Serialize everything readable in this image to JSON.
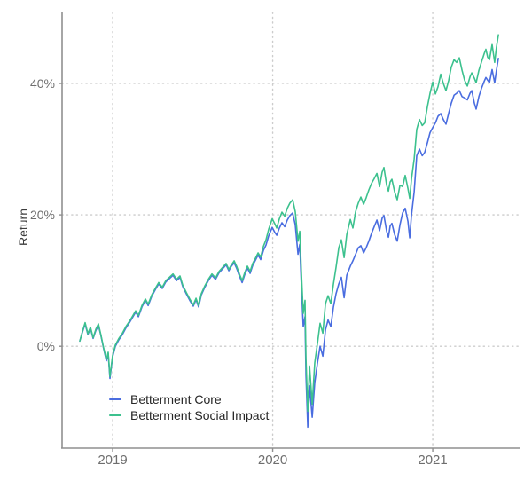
{
  "chart_data": {
    "type": "line",
    "title": "",
    "ylabel": "Return",
    "xlabel": "",
    "grid": "dotted",
    "legend_position": "inside-bottom-left",
    "xlim": [
      2018.684,
      2021.537
    ],
    "ylim": [
      -15.5,
      50.8
    ],
    "x_ticks": [
      {
        "value": 2019,
        "label": "2019"
      },
      {
        "value": 2020,
        "label": "2020"
      },
      {
        "value": 2021,
        "label": "2021"
      }
    ],
    "y_ticks": [
      {
        "value": 0,
        "label": "0%"
      },
      {
        "value": 20,
        "label": "20%"
      },
      {
        "value": 40,
        "label": "40%"
      }
    ],
    "colors": {
      "core_line": "#4a6de0",
      "social_line": "#3cc18e",
      "axis": "#8f8f8f",
      "grid": "#cccccc",
      "tick_text": "#6e6e6e",
      "legend_text": "#262626"
    },
    "x": [
      2018.795,
      2018.812,
      2018.828,
      2018.845,
      2018.861,
      2018.878,
      2018.895,
      2018.911,
      2018.928,
      2018.945,
      2018.961,
      2018.972,
      2018.983,
      2019.0,
      2019.017,
      2019.039,
      2019.061,
      2019.083,
      2019.105,
      2019.127,
      2019.144,
      2019.161,
      2019.183,
      2019.205,
      2019.222,
      2019.244,
      2019.266,
      2019.288,
      2019.31,
      2019.332,
      2019.355,
      2019.377,
      2019.399,
      2019.421,
      2019.438,
      2019.46,
      2019.482,
      2019.504,
      2019.521,
      2019.537,
      2019.554,
      2019.576,
      2019.598,
      2019.62,
      2019.643,
      2019.665,
      2019.687,
      2019.709,
      2019.726,
      2019.742,
      2019.759,
      2019.776,
      2019.792,
      2019.809,
      2019.825,
      2019.842,
      2019.859,
      2019.875,
      2019.892,
      2019.909,
      2019.925,
      2019.942,
      2019.958,
      2019.975,
      2019.997,
      2020.014,
      2020.025,
      2020.042,
      2020.058,
      2020.075,
      2020.091,
      2020.108,
      2020.125,
      2020.141,
      2020.158,
      2020.169,
      2020.18,
      2020.191,
      2020.202,
      2020.208,
      2020.219,
      2020.23,
      2020.247,
      2020.263,
      2020.28,
      2020.296,
      2020.313,
      2020.33,
      2020.346,
      2020.363,
      2020.38,
      2020.396,
      2020.413,
      2020.429,
      2020.446,
      2020.463,
      2020.485,
      2020.501,
      2020.518,
      2020.535,
      2020.551,
      2020.568,
      2020.584,
      2020.601,
      2020.618,
      2020.634,
      2020.651,
      2020.668,
      2020.684,
      2020.695,
      2020.712,
      2020.723,
      2020.734,
      2020.745,
      2020.762,
      2020.778,
      2020.795,
      2020.812,
      2020.828,
      2020.845,
      2020.856,
      2020.867,
      2020.884,
      2020.9,
      2020.917,
      2020.934,
      2020.95,
      2020.967,
      2020.983,
      2021.0,
      2021.017,
      2021.033,
      2021.05,
      2021.066,
      2021.083,
      2021.1,
      2021.116,
      2021.133,
      2021.149,
      2021.166,
      2021.183,
      2021.199,
      2021.216,
      2021.233,
      2021.244,
      2021.26,
      2021.271,
      2021.288,
      2021.304,
      2021.321,
      2021.332,
      2021.343,
      2021.354,
      2021.371,
      2021.387,
      2021.398,
      2021.41
    ],
    "series": [
      {
        "name": "Betterment Core",
        "color": "#4a6de0",
        "values": [
          0.8,
          2.2,
          3.4,
          1.8,
          2.7,
          1.2,
          2.4,
          3.2,
          1.5,
          -0.5,
          -2.2,
          -1.1,
          -4.9,
          -1.6,
          0.0,
          1.0,
          1.8,
          2.8,
          3.6,
          4.5,
          5.2,
          4.5,
          6.0,
          7.0,
          6.2,
          7.6,
          8.6,
          9.5,
          8.8,
          9.8,
          10.3,
          10.8,
          10.0,
          10.5,
          9.1,
          8.0,
          7.0,
          6.1,
          7.1,
          6.0,
          7.8,
          9.0,
          10.0,
          10.8,
          10.2,
          11.2,
          11.8,
          12.4,
          11.5,
          12.2,
          12.7,
          11.8,
          10.7,
          9.7,
          10.9,
          11.9,
          11.1,
          12.3,
          13.1,
          13.9,
          13.2,
          14.6,
          15.4,
          16.8,
          18.1,
          17.3,
          16.9,
          18.0,
          18.8,
          18.2,
          19.2,
          19.9,
          20.3,
          18.5,
          14.0,
          15.5,
          9.0,
          3.0,
          4.5,
          -4.5,
          -12.3,
          -6.0,
          -10.8,
          -5.5,
          -2.5,
          0.0,
          -1.5,
          2.5,
          4.0,
          3.0,
          6.0,
          8.0,
          9.5,
          10.5,
          7.4,
          10.8,
          12.2,
          13.0,
          14.0,
          15.0,
          15.3,
          14.2,
          15.0,
          16.0,
          17.2,
          18.2,
          19.2,
          17.6,
          19.5,
          19.9,
          17.5,
          16.6,
          18.3,
          18.7,
          17.0,
          16.0,
          18.5,
          20.3,
          21.0,
          19.0,
          16.5,
          20.0,
          23.5,
          29.0,
          30.0,
          29.0,
          29.5,
          31.0,
          32.5,
          33.3,
          34.0,
          35.0,
          35.4,
          34.5,
          33.8,
          35.5,
          37.0,
          38.2,
          38.5,
          38.9,
          38.0,
          37.8,
          37.5,
          38.5,
          38.9,
          37.0,
          36.1,
          38.0,
          39.2,
          40.3,
          40.9,
          40.5,
          40.1,
          42.1,
          40.1,
          42.0,
          43.8
        ]
      },
      {
        "name": "Betterment Social Impact",
        "color": "#3cc18e",
        "values": [
          0.8,
          2.3,
          3.6,
          1.9,
          2.9,
          1.3,
          2.6,
          3.4,
          1.6,
          -0.4,
          -2.0,
          -0.9,
          -4.6,
          -1.4,
          0.2,
          1.2,
          2.0,
          3.0,
          3.8,
          4.7,
          5.4,
          4.7,
          6.2,
          7.2,
          6.4,
          7.8,
          8.8,
          9.7,
          9.0,
          10.0,
          10.5,
          11.0,
          10.2,
          10.7,
          9.3,
          8.2,
          7.2,
          6.3,
          7.3,
          6.2,
          8.0,
          9.2,
          10.2,
          11.0,
          10.4,
          11.4,
          12.0,
          12.6,
          11.7,
          12.4,
          13.0,
          12.1,
          11.0,
          10.0,
          11.2,
          12.2,
          11.4,
          12.6,
          13.4,
          14.2,
          13.6,
          15.2,
          16.2,
          17.8,
          19.4,
          18.6,
          18.0,
          19.4,
          20.4,
          19.8,
          21.0,
          21.8,
          22.3,
          20.5,
          16.0,
          17.5,
          11.0,
          5.0,
          7.0,
          -2.0,
          -9.9,
          -3.0,
          -8.8,
          -2.5,
          0.5,
          3.5,
          2.0,
          6.5,
          7.7,
          6.5,
          9.5,
          12.0,
          15.0,
          16.2,
          13.5,
          17.0,
          19.3,
          18.0,
          20.5,
          21.8,
          22.7,
          21.6,
          22.6,
          23.8,
          24.8,
          25.5,
          26.3,
          24.3,
          26.5,
          27.2,
          24.5,
          23.6,
          25.0,
          25.4,
          23.5,
          22.3,
          24.5,
          24.3,
          26.0,
          24.0,
          22.5,
          25.5,
          28.5,
          33.0,
          34.5,
          33.6,
          34.0,
          36.5,
          38.5,
          40.2,
          38.4,
          39.5,
          41.4,
          40.0,
          38.9,
          40.5,
          42.5,
          43.6,
          43.2,
          43.9,
          42.0,
          40.5,
          39.6,
          41.0,
          41.6,
          40.8,
          40.1,
          42.0,
          43.2,
          44.5,
          45.2,
          44.0,
          43.6,
          45.9,
          43.2,
          45.5,
          47.4
        ]
      }
    ]
  }
}
